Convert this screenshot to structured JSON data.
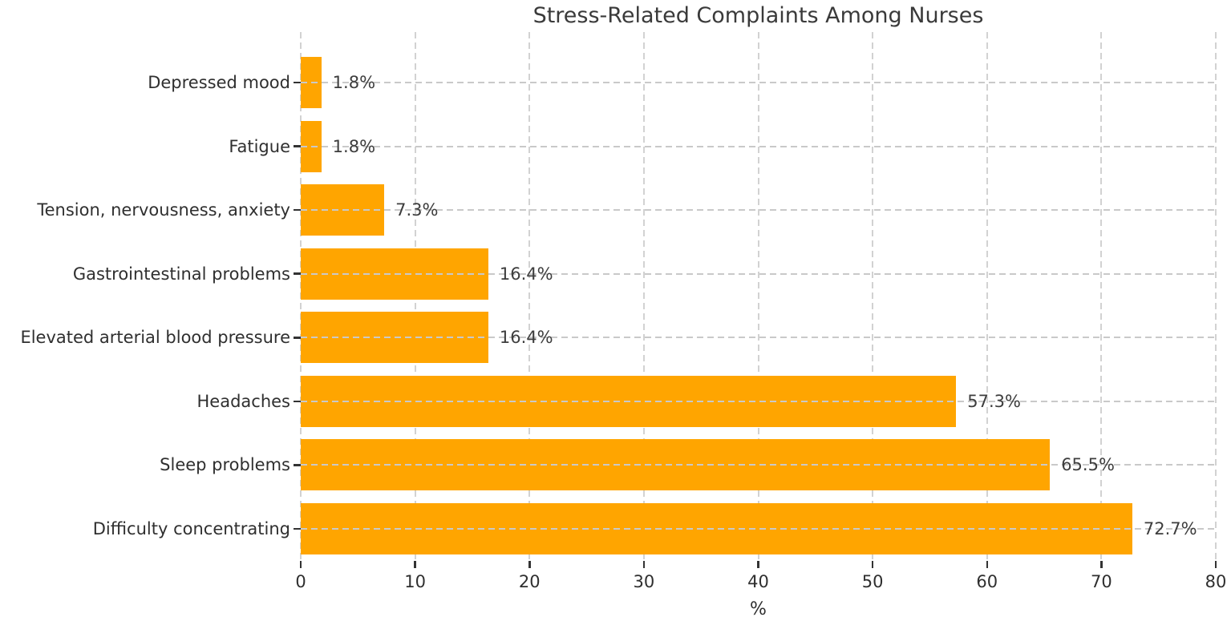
{
  "chart_data": {
    "type": "bar",
    "orientation": "horizontal",
    "title": "Stress-Related Complaints Among Nurses",
    "xlabel": "%",
    "ylabel": "",
    "categories": [
      "Depressed mood",
      "Fatigue",
      "Tension, nervousness, anxiety",
      "Gastrointestinal problems",
      "Elevated arterial blood pressure",
      "Headaches",
      "Sleep problems",
      "Difficulty concentrating"
    ],
    "values": [
      1.8,
      1.8,
      7.3,
      16.4,
      16.4,
      57.3,
      65.5,
      72.7
    ],
    "value_labels": [
      "1.8%",
      "1.8%",
      "7.3%",
      "16.4%",
      "16.4%",
      "57.3%",
      "65.5%",
      "72.7%"
    ],
    "xlim": [
      0,
      80
    ],
    "xticks": [
      0,
      10,
      20,
      30,
      40,
      50,
      60,
      70,
      80
    ],
    "bar_color": "#FFA500",
    "grid_color": "#cccccc",
    "grid_style": "dashed",
    "grid_visible": true,
    "legend_position": "none",
    "text_color": "#2f2f2f",
    "background_color": "#ffffff"
  }
}
